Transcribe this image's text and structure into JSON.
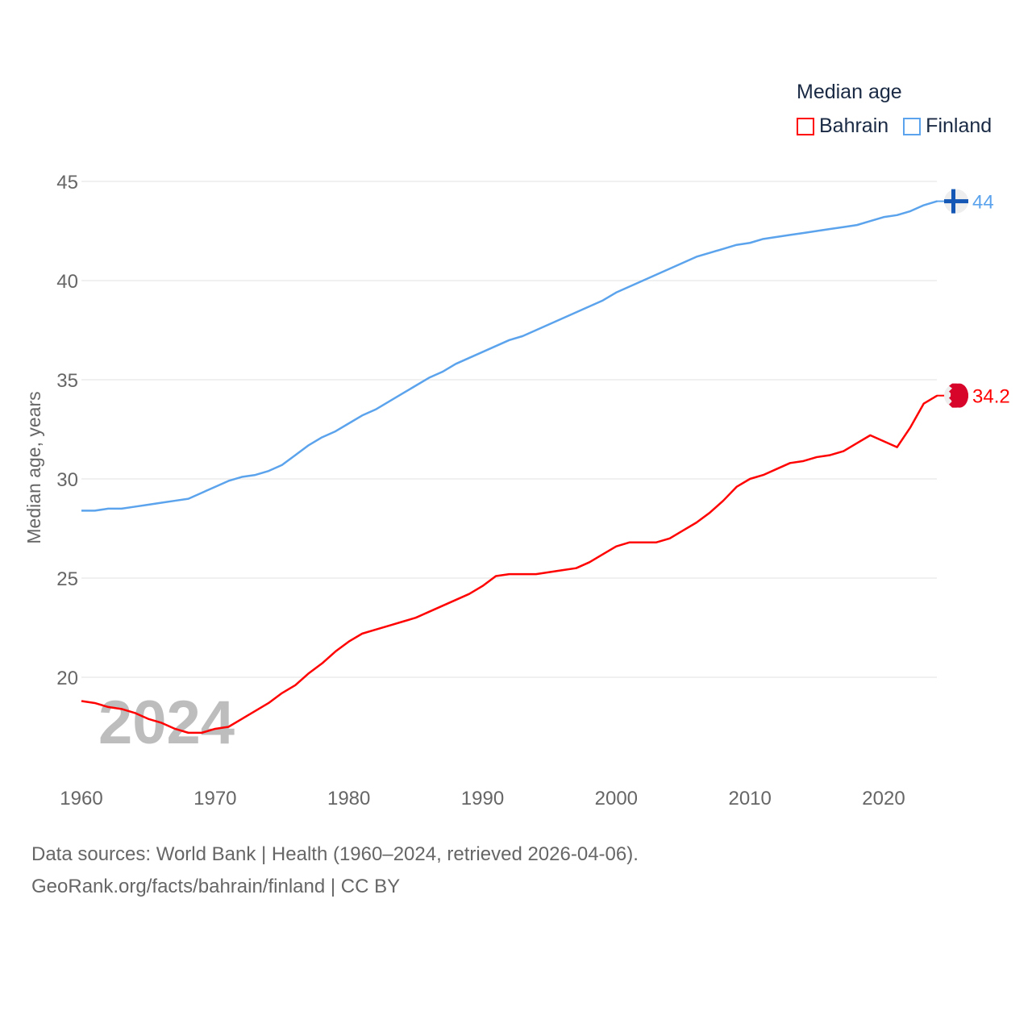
{
  "chart_data": {
    "type": "line",
    "title": "Median age",
    "xlabel": "",
    "ylabel": "Median age, years",
    "xlim": [
      1960,
      2024
    ],
    "ylim": [
      16,
      45
    ],
    "yticks": [
      20,
      25,
      30,
      35,
      40,
      45
    ],
    "xticks": [
      1960,
      1970,
      1980,
      1990,
      2000,
      2010,
      2020
    ],
    "grid": true,
    "legend_position": "top-right",
    "watermark_year": "2024",
    "x": [
      1960,
      1961,
      1962,
      1963,
      1964,
      1965,
      1966,
      1967,
      1968,
      1969,
      1970,
      1971,
      1972,
      1973,
      1974,
      1975,
      1976,
      1977,
      1978,
      1979,
      1980,
      1981,
      1982,
      1983,
      1984,
      1985,
      1986,
      1987,
      1988,
      1989,
      1990,
      1991,
      1992,
      1993,
      1994,
      1995,
      1996,
      1997,
      1998,
      1999,
      2000,
      2001,
      2002,
      2003,
      2004,
      2005,
      2006,
      2007,
      2008,
      2009,
      2010,
      2011,
      2012,
      2013,
      2014,
      2015,
      2016,
      2017,
      2018,
      2019,
      2020,
      2021,
      2022,
      2023,
      2024
    ],
    "series": [
      {
        "name": "Bahrain",
        "color": "#ff0000",
        "end_label": "34.2",
        "values": [
          18.8,
          18.7,
          18.5,
          18.4,
          18.2,
          17.9,
          17.7,
          17.4,
          17.2,
          17.2,
          17.4,
          17.5,
          17.9,
          18.3,
          18.7,
          19.2,
          19.6,
          20.2,
          20.7,
          21.3,
          21.8,
          22.2,
          22.4,
          22.6,
          22.8,
          23.0,
          23.3,
          23.6,
          23.9,
          24.2,
          24.6,
          25.1,
          25.2,
          25.2,
          25.2,
          25.3,
          25.4,
          25.5,
          25.8,
          26.2,
          26.6,
          26.8,
          26.8,
          26.8,
          27.0,
          27.4,
          27.8,
          28.3,
          28.9,
          29.6,
          30.0,
          30.2,
          30.5,
          30.8,
          30.9,
          31.1,
          31.2,
          31.4,
          31.8,
          32.2,
          31.9,
          31.6,
          32.6,
          33.8,
          34.2
        ]
      },
      {
        "name": "Finland",
        "color": "#5ba3ec",
        "end_label": "44",
        "values": [
          28.4,
          28.4,
          28.5,
          28.5,
          28.6,
          28.7,
          28.8,
          28.9,
          29.0,
          29.3,
          29.6,
          29.9,
          30.1,
          30.2,
          30.4,
          30.7,
          31.2,
          31.7,
          32.1,
          32.4,
          32.8,
          33.2,
          33.5,
          33.9,
          34.3,
          34.7,
          35.1,
          35.4,
          35.8,
          36.1,
          36.4,
          36.7,
          37.0,
          37.2,
          37.5,
          37.8,
          38.1,
          38.4,
          38.7,
          39.0,
          39.4,
          39.7,
          40.0,
          40.3,
          40.6,
          40.9,
          41.2,
          41.4,
          41.6,
          41.8,
          41.9,
          42.1,
          42.2,
          42.3,
          42.4,
          42.5,
          42.6,
          42.7,
          42.8,
          43.0,
          43.2,
          43.3,
          43.5,
          43.8,
          44.0
        ]
      }
    ]
  },
  "footer": {
    "line1": "Data sources: World Bank | Health (1960–2024, retrieved 2026-04-06).",
    "line2": "GeoRank.org/facts/bahrain/finland | CC BY"
  }
}
